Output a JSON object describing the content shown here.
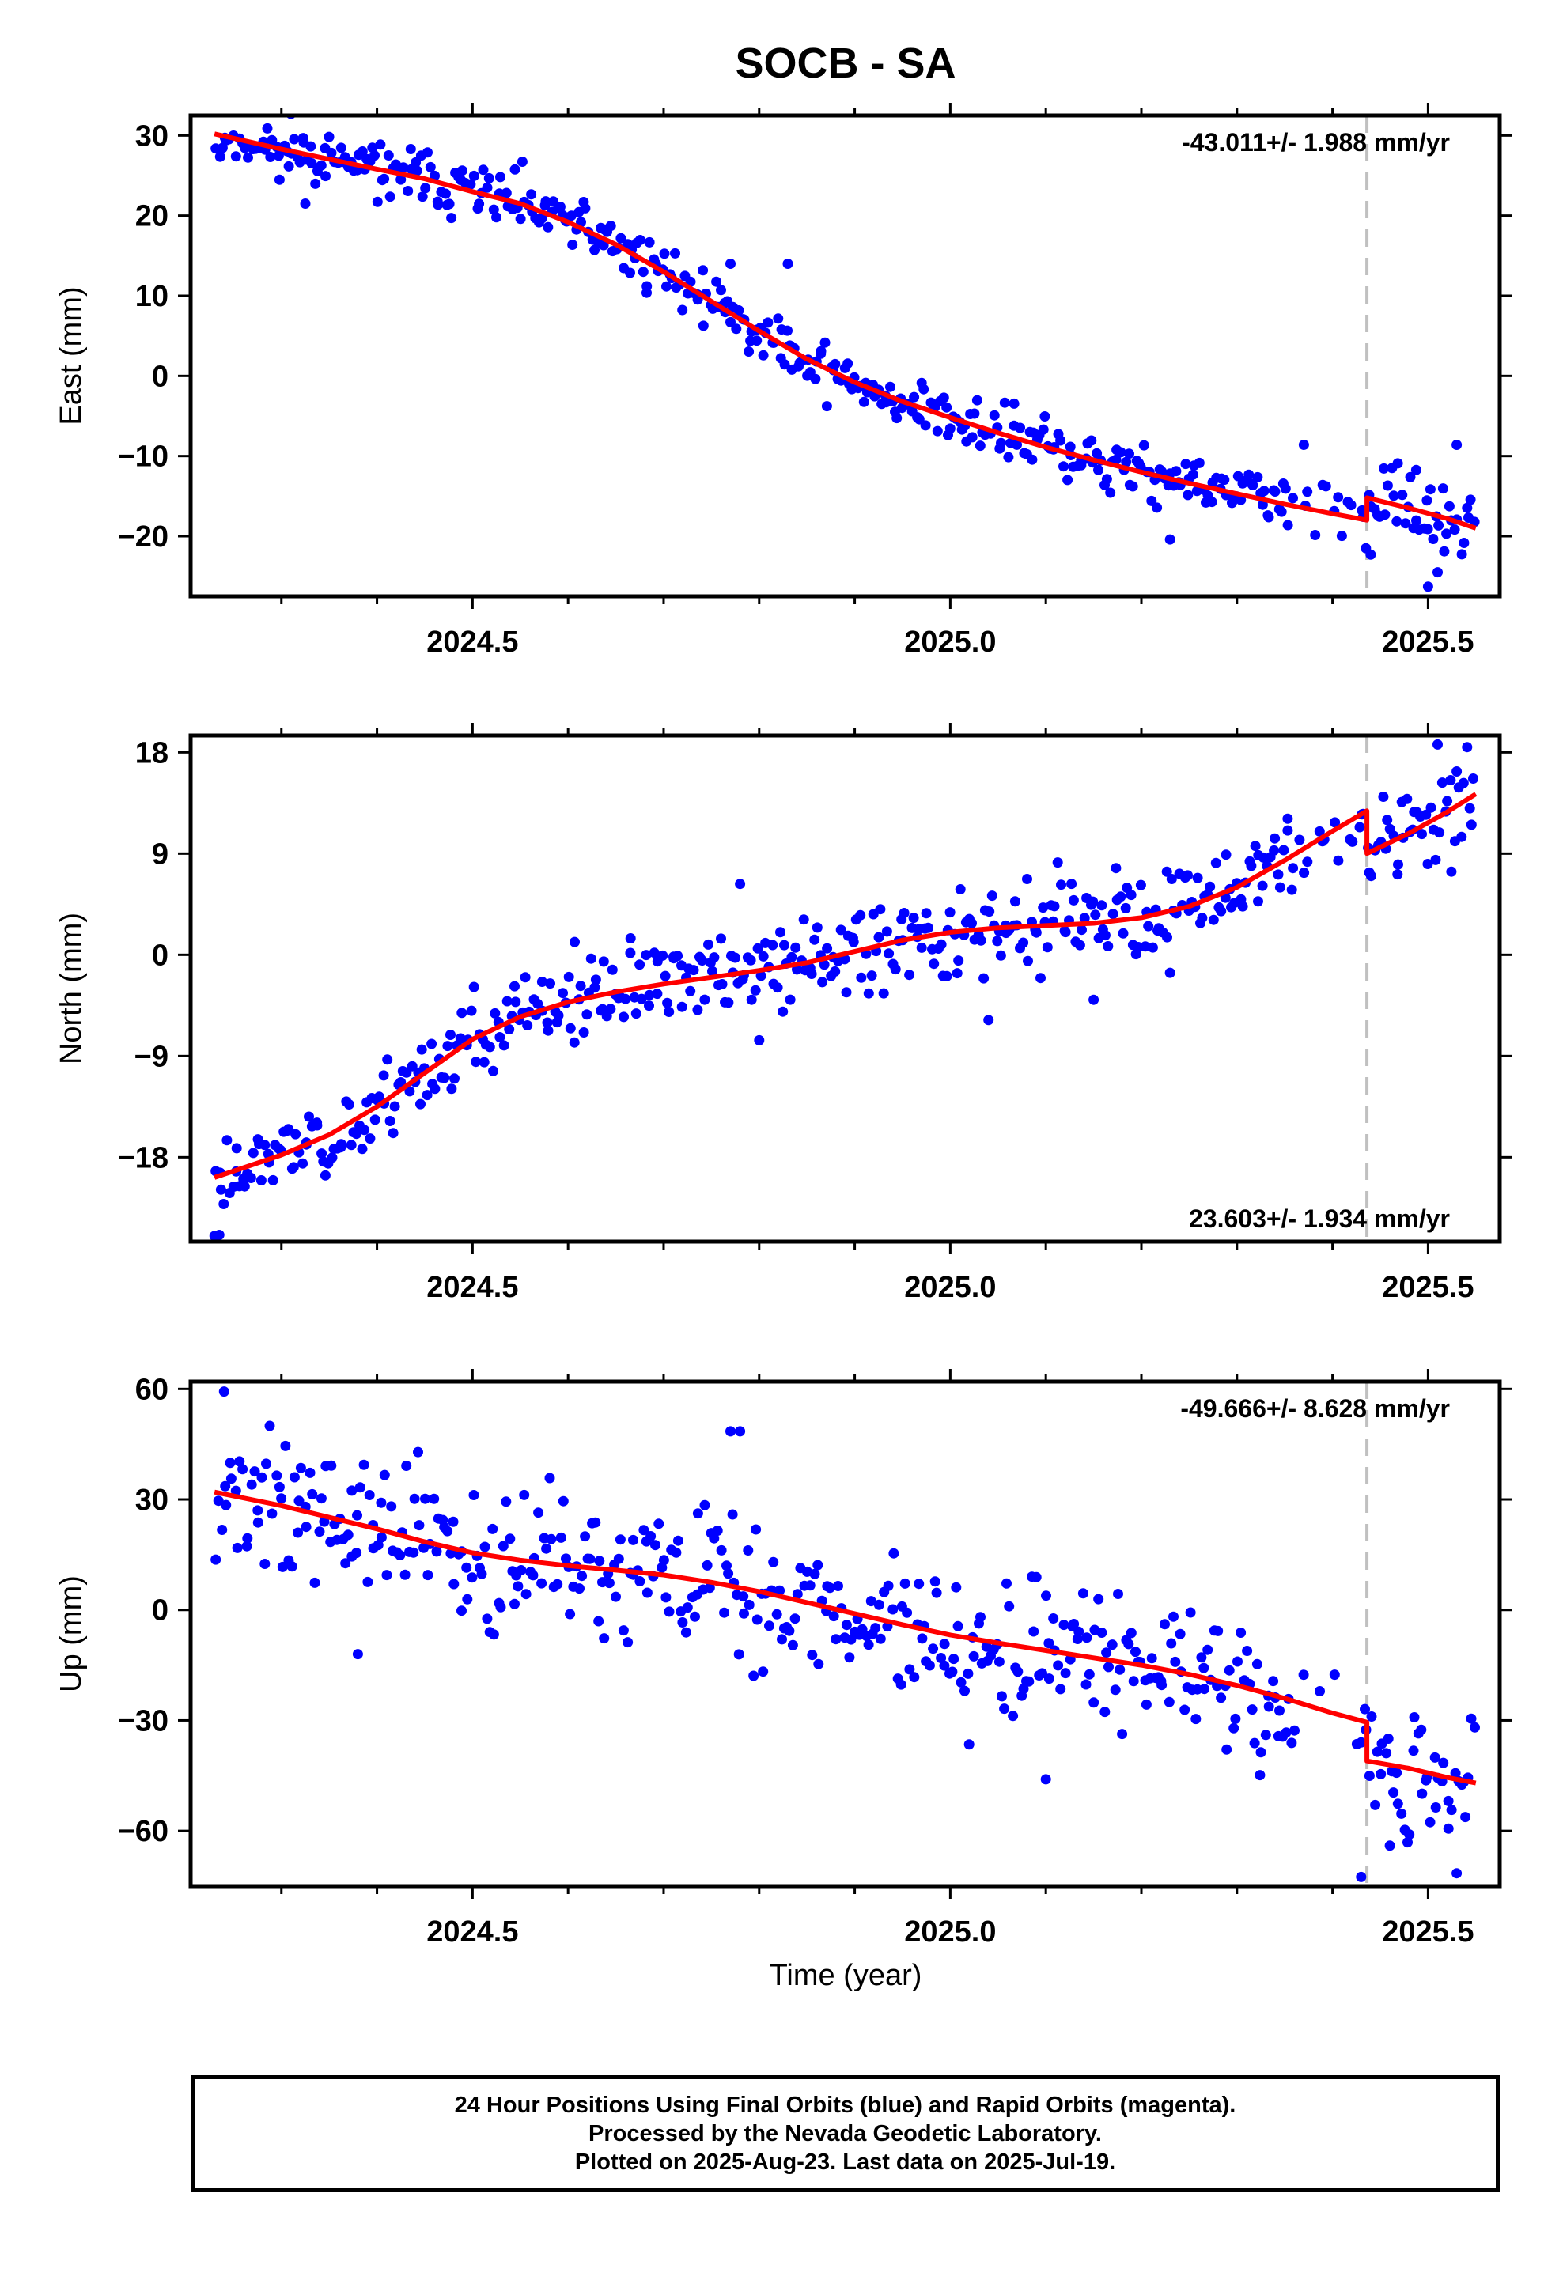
{
  "title": "SOCB - SA",
  "xlabel": "Time (year)",
  "footer": {
    "line1": "24 Hour Positions Using Final Orbits (blue) and Rapid Orbits (magenta).",
    "line2": "Processed by the Nevada Geodetic Laboratory.",
    "line3": "Plotted on 2025-Aug-23. Last data on 2025-Jul-19."
  },
  "colors": {
    "final_orbits": "#0000ff",
    "fit": "#ff0000",
    "event_line": "#c0c0c0",
    "frame": "#000000"
  },
  "chart_data": [
    {
      "type": "scatter",
      "component": "East",
      "ylabel": "East (mm)",
      "rate_label": "-43.011+/- 1.988 mm/yr",
      "xlim": [
        2024.205,
        2025.575
      ],
      "ylim": [
        -27.5,
        32.5
      ],
      "xticks": [
        2024.5,
        2025.0,
        2025.5
      ],
      "xtick_labels": [
        "2024.5",
        "2025.0",
        "2025.5"
      ],
      "yticks": [
        30,
        20,
        10,
        0,
        -10,
        -20
      ],
      "ytick_labels": [
        "30",
        "20",
        "10",
        "0",
        "−10",
        "−20"
      ],
      "event_x": 2025.436,
      "fit": [
        [
          2024.23,
          30.2
        ],
        [
          2024.3,
          28.3
        ],
        [
          2024.4,
          25.8
        ],
        [
          2024.45,
          24.6
        ],
        [
          2024.5,
          23.0
        ],
        [
          2024.55,
          21.5
        ],
        [
          2024.6,
          19.2
        ],
        [
          2024.65,
          16.4
        ],
        [
          2024.7,
          13.0
        ],
        [
          2024.75,
          9.3
        ],
        [
          2024.8,
          5.6
        ],
        [
          2024.85,
          2.1
        ],
        [
          2024.9,
          -0.8
        ],
        [
          2024.95,
          -3.2
        ],
        [
          2025.0,
          -5.2
        ],
        [
          2025.05,
          -7.1
        ],
        [
          2025.1,
          -8.9
        ],
        [
          2025.15,
          -10.5
        ],
        [
          2025.2,
          -12.0
        ],
        [
          2025.25,
          -13.4
        ],
        [
          2025.3,
          -14.7
        ],
        [
          2025.35,
          -16.0
        ],
        [
          2025.4,
          -17.2
        ],
        [
          2025.436,
          -18.0
        ],
        [
          2025.436,
          -15.2
        ],
        [
          2025.48,
          -16.5
        ],
        [
          2025.52,
          -17.8
        ],
        [
          2025.55,
          -19.0
        ]
      ],
      "noise_sd": 1.8,
      "seed": 11,
      "outliers": [
        [
          2024.325,
          21.5
        ],
        [
          2024.31,
          32.7
        ],
        [
          2024.77,
          14.0
        ],
        [
          2024.83,
          14.0
        ],
        [
          2025.23,
          -20.4
        ],
        [
          2025.44,
          -22.3
        ],
        [
          2025.5,
          -26.3
        ],
        [
          2025.51,
          -24.5
        ],
        [
          2025.53,
          -8.6
        ],
        [
          2025.37,
          -8.6
        ]
      ]
    },
    {
      "type": "scatter",
      "component": "North",
      "ylabel": "North (mm)",
      "rate_label": "23.603+/- 1.934 mm/yr",
      "xlim": [
        2024.205,
        2025.575
      ],
      "ylim": [
        -25.5,
        19.5
      ],
      "xticks": [
        2024.5,
        2025.0,
        2025.5
      ],
      "xtick_labels": [
        "2024.5",
        "2025.0",
        "2025.5"
      ],
      "yticks": [
        18,
        9,
        0,
        -9,
        -18
      ],
      "ytick_labels": [
        "18",
        "9",
        "0",
        "−9",
        "−18"
      ],
      "event_x": 2025.436,
      "fit": [
        [
          2024.23,
          -19.8
        ],
        [
          2024.3,
          -17.8
        ],
        [
          2024.35,
          -16.0
        ],
        [
          2024.4,
          -13.5
        ],
        [
          2024.45,
          -10.5
        ],
        [
          2024.5,
          -7.5
        ],
        [
          2024.55,
          -5.5
        ],
        [
          2024.6,
          -4.2
        ],
        [
          2024.65,
          -3.3
        ],
        [
          2024.7,
          -2.6
        ],
        [
          2024.75,
          -2.0
        ],
        [
          2024.8,
          -1.4
        ],
        [
          2024.85,
          -0.7
        ],
        [
          2024.9,
          0.3
        ],
        [
          2024.95,
          1.3
        ],
        [
          2025.0,
          2.0
        ],
        [
          2025.05,
          2.4
        ],
        [
          2025.1,
          2.6
        ],
        [
          2025.15,
          2.8
        ],
        [
          2025.2,
          3.3
        ],
        [
          2025.25,
          4.3
        ],
        [
          2025.3,
          6.0
        ],
        [
          2025.35,
          8.4
        ],
        [
          2025.4,
          11.0
        ],
        [
          2025.436,
          12.8
        ],
        [
          2025.436,
          9.0
        ],
        [
          2025.48,
          10.8
        ],
        [
          2025.52,
          12.7
        ],
        [
          2025.55,
          14.3
        ]
      ],
      "noise_sd": 1.9,
      "seed": 23,
      "outliers": [
        [
          2024.23,
          -25.0
        ],
        [
          2024.235,
          -24.9
        ],
        [
          2024.78,
          6.3
        ],
        [
          2024.8,
          -7.6
        ],
        [
          2025.04,
          -5.8
        ],
        [
          2025.15,
          -4.0
        ],
        [
          2025.23,
          -1.6
        ],
        [
          2025.51,
          18.7
        ],
        [
          2025.53,
          16.3
        ]
      ]
    },
    {
      "type": "scatter",
      "component": "Up",
      "ylabel": "Up (mm)",
      "rate_label": "-49.666+/- 8.628 mm/yr",
      "xlim": [
        2024.205,
        2025.575
      ],
      "ylim": [
        -75.0,
        62.0
      ],
      "xticks": [
        2024.5,
        2025.0,
        2025.5
      ],
      "xtick_labels": [
        "2024.5",
        "2025.0",
        "2025.5"
      ],
      "yticks": [
        60,
        30,
        0,
        -30,
        -60
      ],
      "ytick_labels": [
        "60",
        "30",
        "0",
        "−30",
        "−60"
      ],
      "event_x": 2025.436,
      "fit": [
        [
          2024.23,
          32.0
        ],
        [
          2024.3,
          28.3
        ],
        [
          2024.4,
          22.0
        ],
        [
          2024.45,
          18.5
        ],
        [
          2024.5,
          15.5
        ],
        [
          2024.55,
          13.5
        ],
        [
          2024.6,
          12.0
        ],
        [
          2024.65,
          10.8
        ],
        [
          2024.7,
          9.5
        ],
        [
          2024.75,
          7.5
        ],
        [
          2024.8,
          5.0
        ],
        [
          2024.85,
          2.0
        ],
        [
          2024.9,
          -1.0
        ],
        [
          2024.95,
          -4.0
        ],
        [
          2025.0,
          -6.8
        ],
        [
          2025.05,
          -9.0
        ],
        [
          2025.1,
          -11.0
        ],
        [
          2025.15,
          -13.0
        ],
        [
          2025.2,
          -15.0
        ],
        [
          2025.25,
          -17.5
        ],
        [
          2025.3,
          -20.5
        ],
        [
          2025.35,
          -24.0
        ],
        [
          2025.4,
          -28.0
        ],
        [
          2025.436,
          -30.5
        ],
        [
          2025.436,
          -41.0
        ],
        [
          2025.48,
          -43.0
        ],
        [
          2025.52,
          -45.5
        ],
        [
          2025.55,
          -47.0
        ]
      ],
      "noise_sd": 9.5,
      "seed": 37,
      "outliers": [
        [
          2024.24,
          59.3
        ],
        [
          2024.77,
          48.5
        ],
        [
          2024.78,
          48.5
        ],
        [
          2025.43,
          -72.5
        ],
        [
          2025.53,
          -71.5
        ],
        [
          2024.38,
          -12.0
        ],
        [
          2025.1,
          -46.0
        ],
        [
          2025.46,
          -64.0
        ]
      ]
    }
  ]
}
